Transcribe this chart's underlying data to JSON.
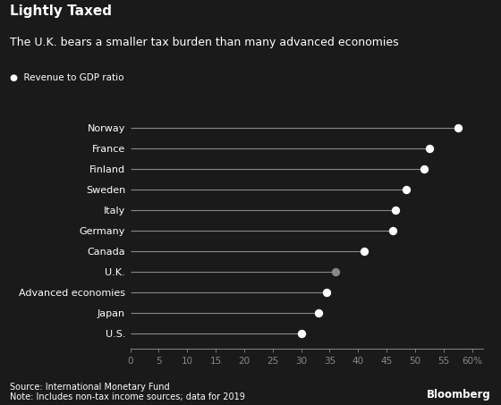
{
  "title": "Lightly Taxed",
  "subtitle": "The U.K. bears a smaller tax burden than many advanced economies",
  "legend_label": "●  Revenue to GDP ratio",
  "source": "Source: International Monetary Fund",
  "note": "Note: Includes non-tax income sources; data for 2019",
  "watermark": "Bloomberg",
  "categories": [
    "Norway",
    "France",
    "Finland",
    "Sweden",
    "Italy",
    "Germany",
    "Canada",
    "U.K.",
    "Advanced economies",
    "Japan",
    "U.S."
  ],
  "values": [
    57.5,
    52.5,
    51.5,
    48.5,
    46.5,
    46.0,
    41.0,
    36.0,
    34.5,
    33.0,
    30.0
  ],
  "dot_colors": [
    "#ffffff",
    "#ffffff",
    "#ffffff",
    "#ffffff",
    "#ffffff",
    "#ffffff",
    "#ffffff",
    "#888888",
    "#ffffff",
    "#ffffff",
    "#ffffff"
  ],
  "line_color": "#888888",
  "dot_size": 45,
  "background_color": "#1a1a1a",
  "text_color": "#ffffff",
  "axis_color": "#888888",
  "xlim": [
    0,
    62
  ],
  "xticks": [
    0,
    5,
    10,
    15,
    20,
    25,
    30,
    35,
    40,
    45,
    50,
    55,
    60
  ],
  "xtick_labels": [
    "0",
    "5",
    "10",
    "15",
    "20",
    "25",
    "30",
    "35",
    "40",
    "45",
    "50",
    "55",
    "60%"
  ],
  "title_fontsize": 11,
  "subtitle_fontsize": 9,
  "label_fontsize": 8,
  "tick_fontsize": 7.5,
  "note_fontsize": 7
}
